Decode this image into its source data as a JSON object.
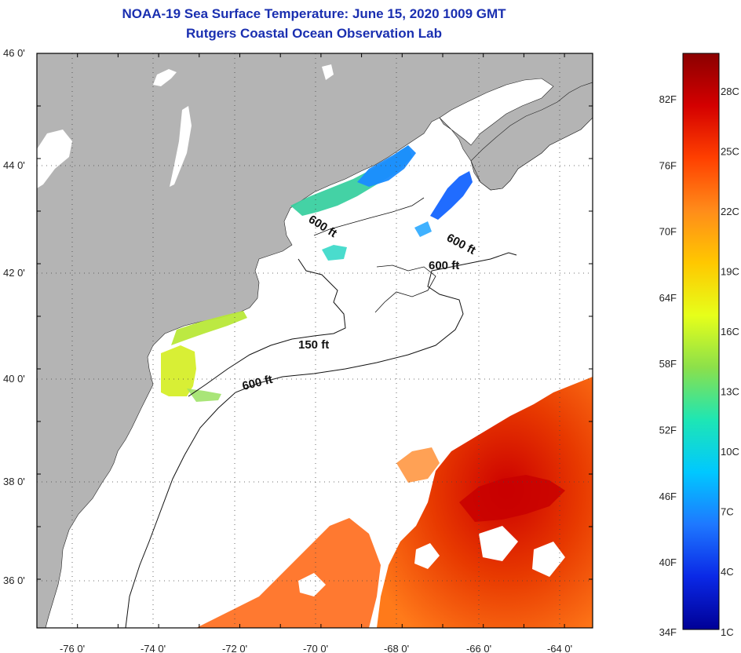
{
  "title": "NOAA-19 Sea Surface Temperature:  June 15, 2020 1009 GMT",
  "subtitle": "Rutgers Coastal Ocean Observation Lab",
  "map": {
    "lat_labels": [
      "46 0'",
      "44 0'",
      "42 0'",
      "40 0'",
      "38 0'",
      "36 0'"
    ],
    "lon_labels": [
      "-76 0'",
      "-74 0'",
      "-72 0'",
      "-70 0'",
      "-68 0'",
      "-66 0'",
      "-64 0'"
    ],
    "contour_labels": [
      "600 ft",
      "600 ft",
      "600 ft",
      "150 ft",
      "600 ft"
    ],
    "land_color": "#b4b4b4",
    "grid": true
  },
  "colorbar": {
    "fahrenheit_labels": [
      "82F",
      "76F",
      "70F",
      "64F",
      "58F",
      "52F",
      "46F",
      "40F",
      "34F"
    ],
    "celsius_labels": [
      "28C",
      "25C",
      "22C",
      "19C",
      "16C",
      "13C",
      "10C",
      "7C",
      "4C",
      "1C"
    ],
    "colors": [
      "#8b0000",
      "#d40000",
      "#ff4000",
      "#ff8c1a",
      "#ffc800",
      "#e6ff1a",
      "#8ce04a",
      "#1ee6b4",
      "#00c8ff",
      "#1e78ff",
      "#0a28e6",
      "#000096"
    ]
  }
}
